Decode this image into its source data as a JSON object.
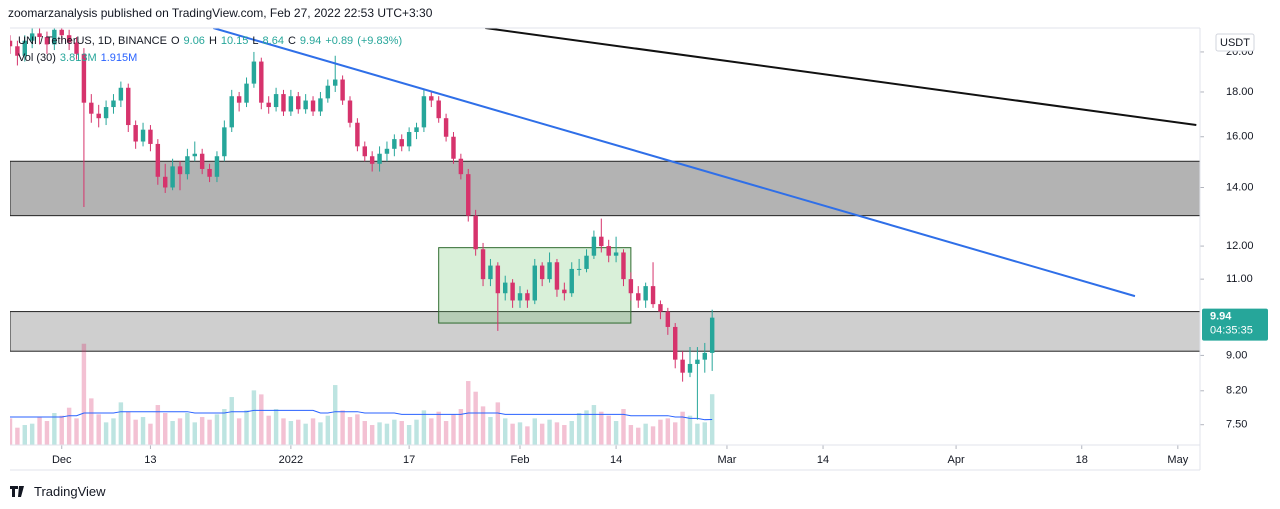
{
  "header": {
    "publisher": "zoomarzanalysis published on TradingView.com, Feb 27, 2022 22:53 UTC+3:30"
  },
  "legend": {
    "symbol": "UNI / TetherUS, 1D, BINANCE",
    "o": "O",
    "h": "H",
    "l": "L",
    "c": "C",
    "change": "+0.89",
    "change_pct": "(+9.83%)",
    "volume_name": "Vol (30)",
    "volume": "3.813M",
    "volume_ma": "1.915M"
  },
  "axis": {
    "currency": "USDT",
    "countdown": "04:35:35"
  },
  "footer": {
    "logo": "TradingView"
  },
  "chart_data": {
    "type": "candlestick",
    "log_scale": true,
    "grid": false,
    "up_color": "#26a69a",
    "down_color": "#d6336c",
    "ma_color": "#2962ff",
    "ylim": [
      7.11,
      21.3
    ],
    "yticks": [
      {
        "value": 20,
        "label": "20.00"
      },
      {
        "value": 18,
        "label": "18.00"
      },
      {
        "value": 16,
        "label": "16.00"
      },
      {
        "value": 14,
        "label": "14.00"
      },
      {
        "value": 12,
        "label": "12.00"
      },
      {
        "value": 11,
        "label": "11.00"
      },
      {
        "value": 9,
        "label": "9.00"
      },
      {
        "value": 8.2,
        "label": "8.20"
      },
      {
        "value": 7.5,
        "label": "7.50"
      }
    ],
    "xlim": [
      0,
      161
    ],
    "xticks": [
      {
        "value": 7,
        "label": "Dec"
      },
      {
        "value": 19,
        "label": "13"
      },
      {
        "value": 38,
        "label": "2022"
      },
      {
        "value": 54,
        "label": "17"
      },
      {
        "value": 69,
        "label": "Feb"
      },
      {
        "value": 82,
        "label": "14"
      },
      {
        "value": 97,
        "label": "Mar"
      },
      {
        "value": 110,
        "label": "14"
      },
      {
        "value": 128,
        "label": "Apr"
      },
      {
        "value": 145,
        "label": "18"
      },
      {
        "value": 158,
        "label": "May"
      }
    ],
    "ohlc": [
      [
        20.6,
        20.9,
        19.9,
        20.3
      ],
      [
        20.3,
        20.6,
        19.3,
        19.8
      ],
      [
        19.8,
        20.9,
        19.5,
        20.6
      ],
      [
        20.6,
        21.4,
        20.2,
        21.0
      ],
      [
        21.0,
        21.3,
        20.4,
        20.8
      ],
      [
        20.8,
        21.1,
        19.9,
        20.4
      ],
      [
        20.4,
        21.5,
        20.1,
        21.2
      ],
      [
        21.2,
        21.6,
        20.5,
        20.9
      ],
      [
        20.9,
        21.2,
        20.1,
        20.5
      ],
      [
        20.5,
        20.8,
        19.6,
        19.9
      ],
      [
        19.9,
        20.2,
        13.3,
        17.5
      ],
      [
        17.5,
        17.9,
        16.6,
        17.0
      ],
      [
        17.0,
        17.4,
        16.4,
        16.8
      ],
      [
        16.8,
        17.6,
        16.5,
        17.3
      ],
      [
        17.3,
        17.9,
        17.0,
        17.6
      ],
      [
        17.6,
        18.5,
        17.3,
        18.2
      ],
      [
        18.2,
        18.4,
        16.2,
        16.5
      ],
      [
        16.5,
        16.7,
        15.5,
        15.8
      ],
      [
        15.8,
        16.6,
        15.6,
        16.3
      ],
      [
        16.3,
        16.5,
        15.4,
        15.7
      ],
      [
        15.7,
        15.9,
        14.1,
        14.4
      ],
      [
        14.4,
        14.9,
        13.8,
        14.0
      ],
      [
        14.0,
        15.1,
        13.9,
        14.8
      ],
      [
        14.8,
        15.0,
        13.9,
        14.5
      ],
      [
        14.5,
        15.5,
        14.3,
        15.2
      ],
      [
        15.2,
        15.8,
        15.0,
        15.3
      ],
      [
        15.3,
        15.5,
        14.5,
        14.7
      ],
      [
        14.7,
        14.9,
        14.2,
        14.4
      ],
      [
        14.4,
        15.4,
        14.2,
        15.2
      ],
      [
        15.2,
        16.7,
        15.0,
        16.4
      ],
      [
        16.4,
        18.1,
        16.2,
        17.8
      ],
      [
        17.8,
        18.0,
        17.1,
        17.5
      ],
      [
        17.5,
        18.7,
        17.3,
        18.4
      ],
      [
        18.4,
        20.0,
        18.2,
        19.5
      ],
      [
        19.5,
        19.7,
        17.2,
        17.5
      ],
      [
        17.5,
        17.8,
        17.0,
        17.3
      ],
      [
        17.3,
        18.2,
        17.1,
        17.9
      ],
      [
        17.9,
        18.1,
        16.9,
        17.1
      ],
      [
        17.1,
        18.1,
        16.9,
        17.8
      ],
      [
        17.8,
        18.0,
        17.0,
        17.2
      ],
      [
        17.2,
        17.9,
        17.0,
        17.6
      ],
      [
        17.6,
        17.8,
        16.9,
        17.1
      ],
      [
        17.1,
        18.0,
        16.9,
        17.7
      ],
      [
        17.7,
        18.6,
        17.5,
        18.3
      ],
      [
        18.3,
        19.8,
        18.0,
        18.6
      ],
      [
        18.6,
        18.8,
        17.4,
        17.6
      ],
      [
        17.6,
        17.8,
        16.4,
        16.6
      ],
      [
        16.6,
        16.8,
        15.4,
        15.6
      ],
      [
        15.6,
        15.8,
        15.0,
        15.2
      ],
      [
        15.2,
        15.4,
        14.6,
        14.9
      ],
      [
        14.9,
        15.6,
        14.6,
        15.3
      ],
      [
        15.3,
        15.8,
        15.0,
        15.5
      ],
      [
        15.5,
        16.1,
        15.2,
        15.9
      ],
      [
        15.9,
        16.1,
        15.4,
        15.6
      ],
      [
        15.6,
        16.4,
        15.4,
        16.2
      ],
      [
        16.2,
        16.6,
        15.9,
        16.4
      ],
      [
        16.4,
        18.1,
        16.2,
        17.8
      ],
      [
        17.8,
        18.0,
        17.3,
        17.6
      ],
      [
        17.6,
        17.8,
        16.6,
        16.8
      ],
      [
        16.8,
        17.0,
        15.8,
        16.0
      ],
      [
        16.0,
        16.2,
        14.9,
        15.1
      ],
      [
        15.1,
        15.3,
        14.3,
        14.5
      ],
      [
        14.5,
        14.7,
        12.8,
        13.0
      ],
      [
        13.0,
        13.2,
        11.7,
        11.9
      ],
      [
        11.9,
        12.1,
        10.8,
        11.0
      ],
      [
        11.0,
        11.6,
        10.8,
        11.4
      ],
      [
        11.4,
        11.5,
        9.6,
        10.6
      ],
      [
        10.6,
        11.1,
        10.4,
        10.9
      ],
      [
        10.9,
        11.0,
        10.2,
        10.4
      ],
      [
        10.4,
        10.8,
        10.2,
        10.6
      ],
      [
        10.6,
        10.7,
        10.2,
        10.4
      ],
      [
        10.4,
        11.6,
        10.3,
        11.4
      ],
      [
        11.4,
        11.5,
        10.8,
        11.0
      ],
      [
        11.0,
        11.8,
        10.9,
        11.5
      ],
      [
        11.5,
        11.6,
        10.5,
        10.7
      ],
      [
        10.7,
        10.9,
        10.4,
        10.6
      ],
      [
        10.6,
        11.5,
        10.5,
        11.3
      ],
      [
        11.3,
        11.6,
        11.1,
        11.3
      ],
      [
        11.3,
        11.9,
        11.2,
        11.7
      ],
      [
        11.7,
        12.5,
        11.6,
        12.3
      ],
      [
        12.3,
        12.9,
        11.8,
        12.0
      ],
      [
        12.0,
        12.2,
        11.5,
        11.7
      ],
      [
        11.7,
        12.3,
        11.5,
        11.8
      ],
      [
        11.8,
        11.9,
        10.8,
        11.0
      ],
      [
        11.0,
        11.2,
        10.4,
        10.6
      ],
      [
        10.6,
        10.8,
        10.2,
        10.4
      ],
      [
        10.4,
        10.9,
        10.2,
        10.8
      ],
      [
        10.8,
        11.5,
        10.2,
        10.3
      ],
      [
        10.3,
        10.4,
        9.9,
        10.1
      ],
      [
        10.1,
        10.2,
        9.5,
        9.7
      ],
      [
        9.7,
        9.8,
        8.7,
        8.9
      ],
      [
        8.9,
        9.1,
        8.4,
        8.6
      ],
      [
        8.6,
        9.2,
        8.5,
        8.8
      ],
      [
        8.8,
        9.2,
        7.6,
        8.9
      ],
      [
        8.9,
        9.3,
        8.6,
        9.06
      ],
      [
        9.06,
        10.15,
        8.64,
        9.94
      ]
    ],
    "volume_lim": [
      0,
      31.3
    ],
    "volume": [
      2.0,
      1.3,
      1.5,
      1.6,
      2.1,
      1.8,
      2.4,
      2.2,
      2.8,
      2.0,
      7.6,
      3.5,
      2.3,
      1.7,
      2.0,
      3.2,
      2.5,
      1.9,
      2.1,
      1.6,
      3.0,
      2.4,
      1.8,
      2.0,
      2.4,
      1.7,
      2.1,
      1.9,
      2.3,
      2.7,
      3.6,
      2.0,
      2.6,
      4.1,
      3.8,
      2.2,
      2.7,
      2.0,
      1.8,
      1.9,
      1.6,
      2.0,
      1.7,
      2.2,
      4.5,
      2.6,
      2.1,
      2.3,
      1.8,
      1.5,
      1.7,
      1.6,
      1.9,
      1.8,
      1.5,
      1.9,
      2.6,
      2.0,
      2.5,
      1.8,
      2.3,
      2.7,
      4.8,
      4.0,
      2.9,
      2.1,
      3.2,
      2.0,
      1.6,
      1.7,
      1.4,
      2.0,
      1.6,
      1.9,
      1.7,
      1.5,
      1.8,
      2.4,
      2.6,
      3.0,
      2.5,
      2.2,
      1.8,
      2.7,
      1.5,
      1.3,
      1.6,
      1.4,
      1.9,
      2.0,
      1.7,
      2.5,
      2.2,
      1.6,
      1.7,
      3.813
    ],
    "volume_ma": [
      2.1,
      2.1,
      2.1,
      2.1,
      2.1,
      2.1,
      2.1,
      2.1,
      2.2,
      2.2,
      2.4,
      2.4,
      2.4,
      2.4,
      2.4,
      2.5,
      2.5,
      2.5,
      2.5,
      2.5,
      2.5,
      2.5,
      2.5,
      2.5,
      2.5,
      2.4,
      2.4,
      2.4,
      2.4,
      2.4,
      2.5,
      2.5,
      2.5,
      2.6,
      2.6,
      2.6,
      2.6,
      2.6,
      2.6,
      2.6,
      2.6,
      2.6,
      2.4,
      2.4,
      2.5,
      2.5,
      2.5,
      2.5,
      2.4,
      2.4,
      2.4,
      2.4,
      2.4,
      2.3,
      2.3,
      2.3,
      2.3,
      2.3,
      2.3,
      2.3,
      2.3,
      2.3,
      2.4,
      2.4,
      2.4,
      2.4,
      2.4,
      2.3,
      2.3,
      2.3,
      2.3,
      2.3,
      2.3,
      2.3,
      2.3,
      2.3,
      2.3,
      2.3,
      2.3,
      2.3,
      2.3,
      2.3,
      2.3,
      2.3,
      2.2,
      2.2,
      2.2,
      2.2,
      2.2,
      2.2,
      2.1,
      2.1,
      2.0,
      2.0,
      1.9,
      1.915
    ],
    "zones": [
      {
        "low": 13.0,
        "high": 15.0,
        "color": "#b3b3b3"
      },
      {
        "low": 9.1,
        "high": 10.1,
        "color": "#cfcfcf"
      }
    ],
    "box": {
      "x": [
        58,
        84
      ],
      "low": 9.8,
      "high": 11.95,
      "color": "rgba(120,200,120,0.28)"
    },
    "trend_lines": [
      {
        "x": [
          27.5,
          152.2
        ],
        "y": [
          21.3,
          10.52
        ],
        "color": "#2f6fe8"
      },
      {
        "x": [
          64.3,
          160.5
        ],
        "y": [
          21.3,
          16.5
        ],
        "color": "#111111"
      }
    ]
  }
}
